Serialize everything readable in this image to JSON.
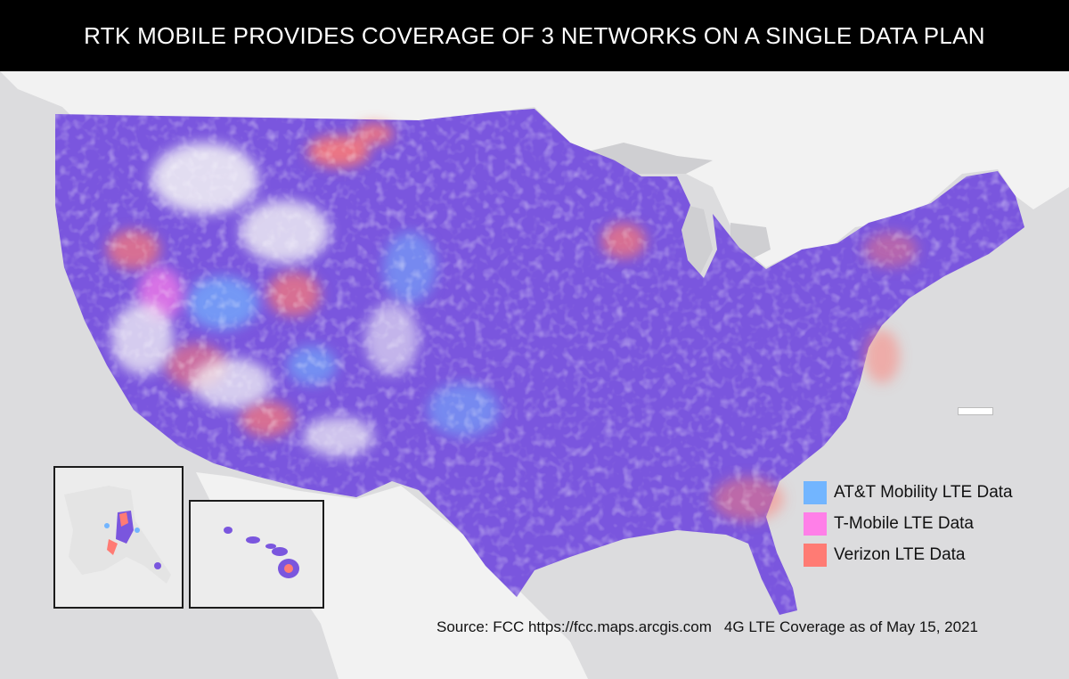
{
  "title": "RTK MOBILE PROVIDES COVERAGE OF 3 NETWORKS ON A SINGLE DATA PLAN",
  "legend": [
    {
      "label": "AT&T Mobility LTE Data",
      "color": "#72b5ff"
    },
    {
      "label": "T-Mobile LTE Data",
      "color": "#ff7fe8"
    },
    {
      "label": "Verizon LTE Data",
      "color": "#ff7b74"
    }
  ],
  "colors": {
    "combined_coverage": "#7a56de",
    "land": "#f4f4f4",
    "water": "#d8d8da",
    "title_bar": "#000000"
  },
  "footer": {
    "source": "Source: FCC https://fcc.maps.arcgis.com",
    "note": "4G LTE Coverage as of May 15, 2021"
  }
}
